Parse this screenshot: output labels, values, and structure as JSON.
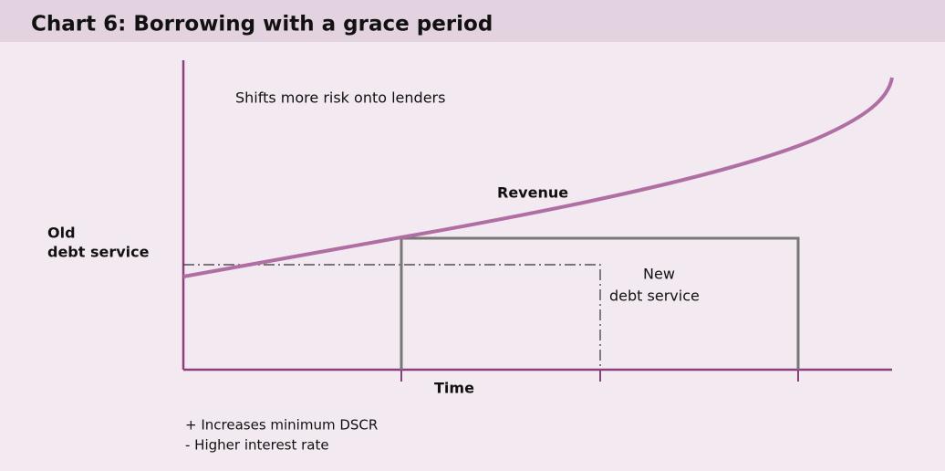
{
  "header": {
    "title": "Chart 6: Borrowing with a grace period"
  },
  "annotations": {
    "risk_note": "Shifts more risk onto lenders",
    "revenue": "Revenue",
    "old_debt_service": [
      "Old",
      "debt service"
    ],
    "new_debt_service": [
      "New",
      "debt service"
    ],
    "x_axis": "Time",
    "notes": [
      "+ Increases minimum DSCR",
      "- Higher interest rate"
    ]
  }
}
